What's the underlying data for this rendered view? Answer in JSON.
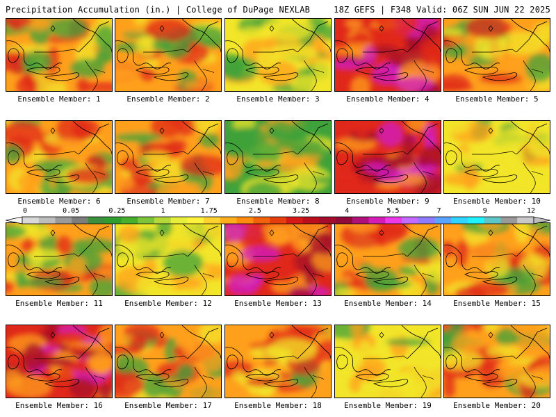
{
  "header": {
    "left": "Precipitation Accumulation (in.) | College of DuPage NEXLAB",
    "right": "18Z GEFS | F348 Valid: 06Z SUN JUN 22 2025"
  },
  "legend": {
    "labels": [
      "0",
      "0.05",
      "0.25",
      "1",
      "1.75",
      "2.5",
      "3.25",
      "4",
      "5.5",
      "7",
      "9",
      "12"
    ],
    "colors": [
      "#d9d9d9",
      "#bdbdbd",
      "#9a9a9a",
      "#7d7d7d",
      "#3c8f3c",
      "#2f9e2f",
      "#46b02e",
      "#7cc43a",
      "#b5d93a",
      "#e7ef3b",
      "#fff23a",
      "#ffd22e",
      "#ffae1c",
      "#ff8c0e",
      "#f2620a",
      "#e63d0f",
      "#d51717",
      "#bb0f1e",
      "#a30c2c",
      "#8f0a3a",
      "#b0107a",
      "#d51db5",
      "#ee39e6",
      "#c46bff",
      "#8e7bff",
      "#5aa3ff",
      "#31d3ff",
      "#1ff2ff",
      "#5ec6c6",
      "#9a9a9a",
      "#c9c9c9"
    ]
  },
  "colors": {
    "green": "#3fa23a",
    "yellow": "#f2e52a",
    "orange": "#ffa01c",
    "red": "#e0281a",
    "darkred": "#a50c2a",
    "magenta": "#d01cc8",
    "cyan": "#3ad8ff"
  },
  "members": [
    {
      "caption": "Ensemble Member: 1",
      "base": "orange"
    },
    {
      "caption": "Ensemble Member: 2",
      "base": "orange"
    },
    {
      "caption": "Ensemble Member: 3",
      "base": "yellow"
    },
    {
      "caption": "Ensemble Member: 4",
      "base": "red"
    },
    {
      "caption": "Ensemble Member: 5",
      "base": "orange"
    },
    {
      "caption": "Ensemble Member: 6",
      "base": "orange"
    },
    {
      "caption": "Ensemble Member: 7",
      "base": "orange"
    },
    {
      "caption": "Ensemble Member: 8",
      "base": "green"
    },
    {
      "caption": "Ensemble Member: 9",
      "base": "red"
    },
    {
      "caption": "Ensemble Member: 10",
      "base": "yellow"
    },
    {
      "caption": "Ensemble Member: 11",
      "base": "orange"
    },
    {
      "caption": "Ensemble Member: 12",
      "base": "yellow"
    },
    {
      "caption": "Ensemble Member: 13",
      "base": "red"
    },
    {
      "caption": "Ensemble Member: 14",
      "base": "orange"
    },
    {
      "caption": "Ensemble Member: 15",
      "base": "orange"
    },
    {
      "caption": "Ensemble Member: 16",
      "base": "red"
    },
    {
      "caption": "Ensemble Member: 17",
      "base": "orange"
    },
    {
      "caption": "Ensemble Member: 18",
      "base": "orange"
    },
    {
      "caption": "Ensemble Member: 19",
      "base": "yellow"
    },
    {
      "caption": "Ensemble Member: 20",
      "base": "orange"
    }
  ]
}
